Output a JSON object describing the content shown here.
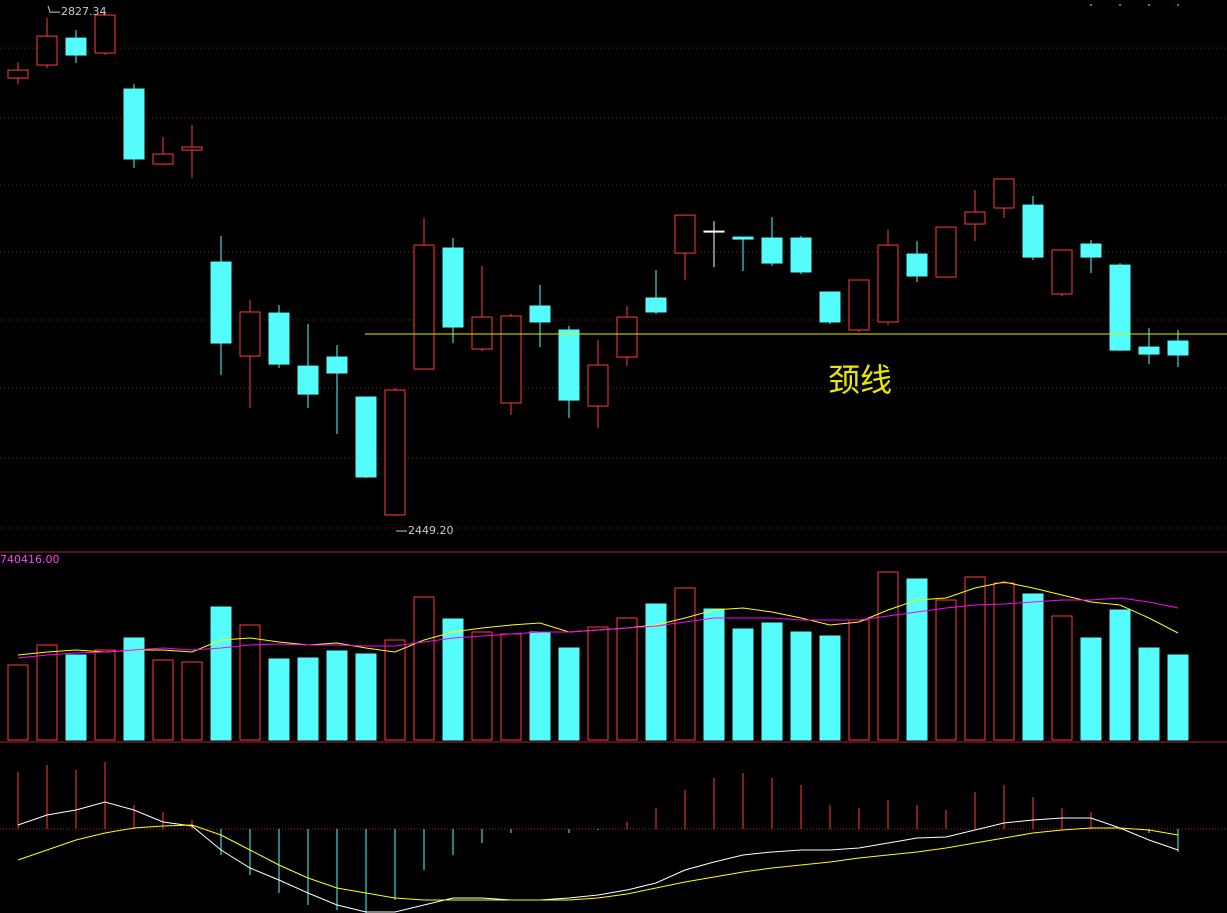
{
  "chart_data": [
    {
      "type": "candlestick",
      "open": [
        2777.8,
        2787.6,
        2807.8,
        2796.6,
        2769.6,
        2713.3,
        2723.8,
        2639.8,
        2569.2,
        2601.5,
        2561.7,
        2568.5,
        2538.5,
        2450.0,
        2559.5,
        2650.3,
        2574.5,
        2534.0,
        2606.8,
        2588.8,
        2531.7,
        2568.5,
        2612.8,
        2646.5,
        2663.0,
        2658.5,
        2657.8,
        2657.8,
        2617.3,
        2588.8,
        2594.8,
        2645.8,
        2628.5,
        2668.3,
        2680.3,
        2682.5,
        2615.8,
        2653.3,
        2637.5,
        2576.0,
        2580.5
      ],
      "close": [
        2783.8,
        2809.3,
        2795.1,
        2825.1,
        2717.1,
        2720.8,
        2726.1,
        2579.0,
        2602.3,
        2563.2,
        2540.7,
        2556.5,
        2478.5,
        2543.7,
        2652.5,
        2591.0,
        2598.5,
        2599.3,
        2594.8,
        2536.2,
        2562.5,
        2598.5,
        2602.3,
        2675.0,
        2663.0,
        2657.0,
        2639.0,
        2632.3,
        2594.8,
        2626.3,
        2652.5,
        2629.3,
        2666.0,
        2677.3,
        2702.1,
        2643.5,
        2648.8,
        2643.5,
        2573.7,
        2570.7,
        2570.0
      ],
      "high": [
        2789.8,
        2822.8,
        2813.8,
        2827.34,
        2773.3,
        2733.6,
        2742.6,
        2659.3,
        2611.3,
        2607.5,
        2593.3,
        2577.5,
        2538.5,
        2545.2,
        2672.8,
        2657.8,
        2636.8,
        2600.8,
        2622.5,
        2591.8,
        2581.3,
        2606.8,
        2633.8,
        2675.0,
        2670.5,
        2658.5,
        2673.5,
        2659.3,
        2617.3,
        2626.3,
        2663.8,
        2655.5,
        2666.0,
        2693.8,
        2702.1,
        2689.3,
        2648.8,
        2656.3,
        2639.0,
        2590.3,
        2588.8
      ],
      "low": [
        2773.3,
        2785.3,
        2789.1,
        2795.1,
        2710.3,
        2712.6,
        2702.8,
        2555.0,
        2530.2,
        2560.2,
        2530.2,
        2510.7,
        2477.7,
        2449.2,
        2559.5,
        2579.0,
        2573.0,
        2525.0,
        2576.0,
        2522.7,
        2515.2,
        2561.7,
        2600.8,
        2626.3,
        2636.0,
        2633.0,
        2636.8,
        2630.8,
        2593.3,
        2587.3,
        2592.5,
        2624.8,
        2628.5,
        2655.5,
        2672.8,
        2641.3,
        2614.3,
        2631.5,
        2573.0,
        2563.2,
        2561.0
      ],
      "up_color": "#ff3c3c",
      "down_color": "#54fcfc",
      "flat_color": "#ffffff",
      "ylim": [
        2422.2,
        2836.4
      ],
      "yticks": [
        2800.3,
        2747.8,
        2697.5,
        2647.3,
        2596.3,
        2545.2,
        2492.7,
        2440.2
      ],
      "grid": true,
      "max_label": "2827.34",
      "min_label": "2449.20",
      "neckline": {
        "label": "颈线",
        "value": 2585.8,
        "color": "#e8e800"
      }
    },
    {
      "type": "bar",
      "values": [
        308500,
        390800,
        349600,
        370200,
        419600,
        329100,
        320800,
        547100,
        473000,
        333200,
        337300,
        366100,
        353800,
        411300,
        588200,
        497700,
        444200,
        436000,
        444200,
        378400,
        464800,
        501800,
        559400,
        625200,
        538900,
        456600,
        481300,
        444200,
        427800,
        493600,
        691100,
        662300,
        575900,
        670500,
        645800,
        600600,
        510100,
        419600,
        534700,
        378400,
        349600
      ],
      "series": [
        {
          "color": "#ffff00",
          "values": [
            349600,
            362000,
            370200,
            362000,
            370200,
            370200,
            362000,
            411300,
            419600,
            403100,
            390800,
            399000,
            378400,
            362000,
            411300,
            444200,
            460700,
            473000,
            481300,
            444200,
            452500,
            460700,
            473000,
            501800,
            534700,
            543000,
            526500,
            501800,
            473000,
            485400,
            534700,
            575900,
            584100,
            625200,
            649900,
            625200,
            596400,
            567700,
            555300,
            501800,
            440100
          ]
        },
        {
          "color": "#ff00ff",
          "values": [
            337300,
            349600,
            357900,
            362000,
            370200,
            378400,
            370200,
            378400,
            390800,
            394900,
            390800,
            390800,
            386700,
            386700,
            403100,
            419600,
            427800,
            436000,
            444200,
            444200,
            452500,
            460700,
            468900,
            485400,
            501800,
            501800,
            501800,
            493600,
            493600,
            493600,
            510100,
            526500,
            543000,
            555300,
            559400,
            567700,
            575900,
            575900,
            584100,
            567700,
            543000
          ]
        }
      ],
      "ylim": [
        0,
        773300
      ],
      "yticks": [
        {
          "value": 740416,
          "label": "740416.00"
        }
      ]
    },
    {
      "type": "macd",
      "histogram": [
        2.85,
        3.2,
        2.95,
        3.35,
        1.2,
        0.85,
        0.45,
        -1.3,
        -2.3,
        -3.2,
        -3.8,
        -4.05,
        -4.2,
        -3.55,
        -2.05,
        -1.3,
        -0.7,
        -0.2,
        0,
        -0.2,
        -0.05,
        0.35,
        1.05,
        1.95,
        2.55,
        2.8,
        2.55,
        2.2,
        1.2,
        1.05,
        1.45,
        1.2,
        0.95,
        1.85,
        2.2,
        1.6,
        1.05,
        0.85,
        -0.05,
        -0.2,
        -1.15
      ],
      "series": [
        {
          "color": "#ffffff",
          "values": [
            0.2,
            0.7,
            0.95,
            1.35,
            0.95,
            0.35,
            0.15,
            -1.05,
            -1.95,
            -2.55,
            -3.2,
            -3.8,
            -4.15,
            -4.15,
            -3.8,
            -3.45,
            -3.45,
            -3.55,
            -3.55,
            -3.45,
            -3.3,
            -3.05,
            -2.7,
            -2.05,
            -1.65,
            -1.3,
            -1.15,
            -1.05,
            -1.05,
            -0.95,
            -0.7,
            -0.45,
            -0.4,
            -0.05,
            0.3,
            0.45,
            0.55,
            0.55,
            0.05,
            -0.55,
            -1.05
          ]
        },
        {
          "color": "#ffff00",
          "values": [
            -1.55,
            -1.05,
            -0.55,
            -0.2,
            0.05,
            0.15,
            0.2,
            -0.3,
            -1.05,
            -1.8,
            -2.45,
            -2.95,
            -3.2,
            -3.45,
            -3.55,
            -3.55,
            -3.55,
            -3.55,
            -3.55,
            -3.55,
            -3.45,
            -3.25,
            -2.95,
            -2.65,
            -2.4,
            -2.15,
            -1.95,
            -1.8,
            -1.65,
            -1.45,
            -1.3,
            -1.15,
            -0.95,
            -0.7,
            -0.45,
            -0.2,
            -0.05,
            0.05,
            0.05,
            -0.05,
            -0.3
          ]
        }
      ],
      "up_color": "#ff3c3c",
      "down_color": "#54fcfc",
      "ylim": [
        -4.2,
        4.35
      ],
      "yticks": [
        0
      ]
    }
  ]
}
